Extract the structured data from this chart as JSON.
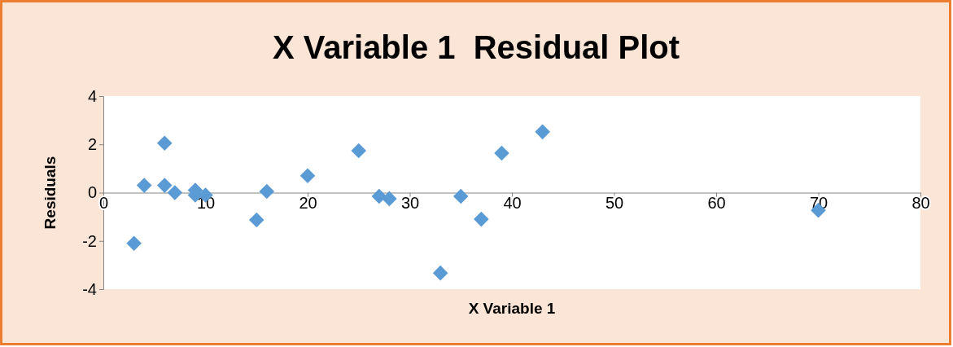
{
  "chart_data": {
    "type": "scatter",
    "title": "X Variable 1  Residual Plot",
    "xlabel": "X Variable 1",
    "ylabel": "Residuals",
    "x": [
      3,
      4,
      6,
      6,
      7,
      9,
      9,
      10,
      15,
      16,
      20,
      25,
      27,
      28,
      33,
      35,
      37,
      39,
      43,
      70
    ],
    "series": [
      {
        "color": "#5b9bd5",
        "values": [
          -2.1,
          0.3,
          2.05,
          0.3,
          0,
          0.1,
          -0.1,
          -0.1,
          -1.13,
          0.05,
          0.7,
          1.74,
          -0.15,
          -0.25,
          -3.33,
          -0.15,
          -1.1,
          1.64,
          2.52,
          -0.73
        ]
      }
    ],
    "xlim": [
      0,
      80
    ],
    "xticks": [
      0,
      10,
      20,
      30,
      40,
      50,
      60,
      70,
      80
    ],
    "ylim": [
      -4,
      4
    ],
    "yticks": [
      -4,
      -2,
      0,
      2,
      4
    ],
    "marker": "diamond",
    "grid": false
  }
}
